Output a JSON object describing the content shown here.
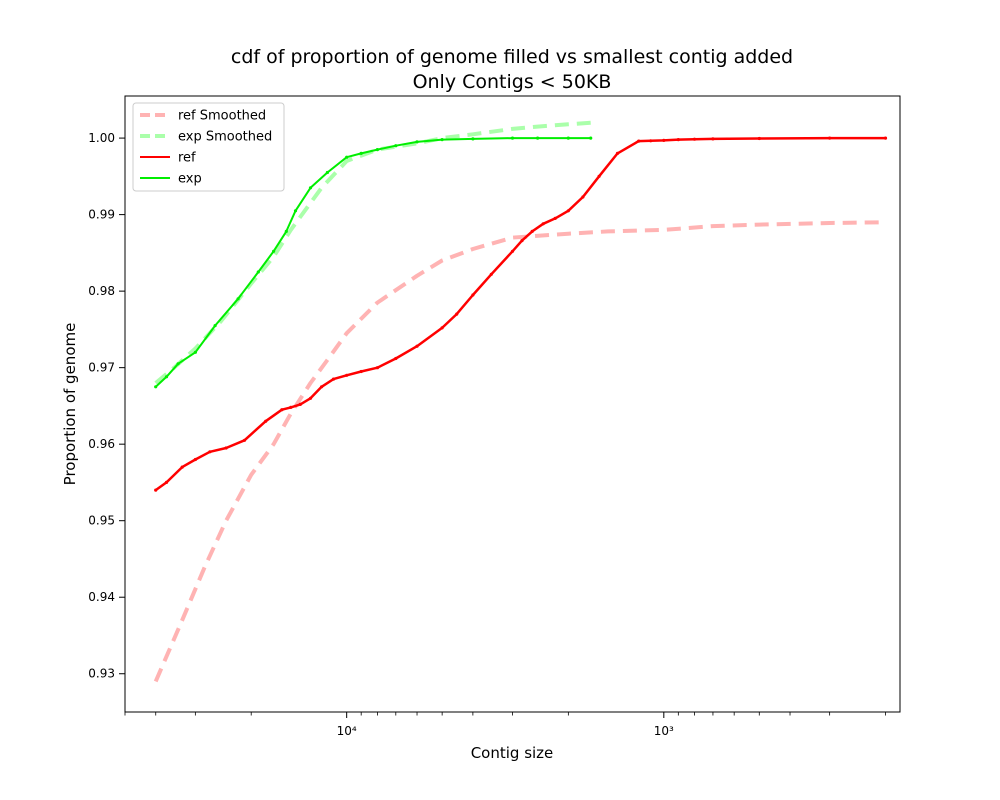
{
  "chart_data": {
    "type": "line",
    "title": "cdf of proportion of genome filled vs smallest contig added",
    "subtitle": "Only Contigs < 50KB",
    "xlabel": "Contig size",
    "ylabel": "Proportion of genome",
    "x_scale": "log",
    "x_axis_inverted": true,
    "xlim": [
      50000,
      180
    ],
    "ylim": [
      0.925,
      1.0055
    ],
    "x_ticks": [
      {
        "value": 10000,
        "label": "10⁴"
      },
      {
        "value": 1000,
        "label": "10³"
      }
    ],
    "y_ticks": [
      {
        "value": 0.93,
        "label": "0.93"
      },
      {
        "value": 0.94,
        "label": "0.94"
      },
      {
        "value": 0.95,
        "label": "0.95"
      },
      {
        "value": 0.96,
        "label": "0.96"
      },
      {
        "value": 0.97,
        "label": "0.97"
      },
      {
        "value": 0.98,
        "label": "0.98"
      },
      {
        "value": 0.99,
        "label": "0.99"
      },
      {
        "value": 1.0,
        "label": "1.00"
      }
    ],
    "grid": false,
    "legend_position": "top-left",
    "series": [
      {
        "name": "ref Smoothed",
        "style": "dashed",
        "color": "#ffb3b3",
        "x": [
          40000,
          33000,
          28000,
          24000,
          20000,
          17000,
          15000,
          13000,
          11500,
          10000,
          8000,
          6000,
          5000,
          4000,
          3000,
          2000,
          1500,
          1000,
          700,
          500,
          300,
          200
        ],
        "y": [
          0.929,
          0.937,
          0.944,
          0.95,
          0.956,
          0.96,
          0.964,
          0.968,
          0.971,
          0.9745,
          0.9785,
          0.982,
          0.984,
          0.9855,
          0.987,
          0.9875,
          0.9878,
          0.988,
          0.9885,
          0.9887,
          0.9889,
          0.989
        ]
      },
      {
        "name": "exp Smoothed",
        "style": "dashed",
        "color": "#aaffaa",
        "x": [
          40000,
          35000,
          30000,
          25000,
          20000,
          17000,
          15000,
          12000,
          10000,
          8000,
          6000,
          5000,
          4000,
          3000,
          2500,
          2000,
          1700
        ],
        "y": [
          0.968,
          0.97,
          0.9725,
          0.976,
          0.981,
          0.9845,
          0.988,
          0.9935,
          0.997,
          0.9985,
          0.9993,
          1.0,
          1.0005,
          1.0012,
          1.0015,
          1.0018,
          1.002
        ]
      },
      {
        "name": "ref",
        "style": "solid",
        "color": "#ff0000",
        "x": [
          40000,
          37000,
          33000,
          30000,
          27000,
          24000,
          21000,
          18000,
          16000,
          15000,
          14000,
          13000,
          12000,
          11000,
          10000,
          9000,
          8000,
          7000,
          6000,
          5000,
          4500,
          4000,
          3500,
          3000,
          2800,
          2600,
          2400,
          2200,
          2000,
          1800,
          1600,
          1400,
          1200,
          1100,
          1000,
          900,
          800,
          700,
          500,
          300,
          200
        ],
        "y": [
          0.954,
          0.955,
          0.957,
          0.958,
          0.959,
          0.9595,
          0.9605,
          0.963,
          0.9645,
          0.9648,
          0.9652,
          0.966,
          0.9675,
          0.9685,
          0.969,
          0.9695,
          0.97,
          0.9712,
          0.9728,
          0.9752,
          0.977,
          0.9795,
          0.9822,
          0.9852,
          0.9866,
          0.9878,
          0.9888,
          0.9895,
          0.9905,
          0.9923,
          0.995,
          0.998,
          0.9996,
          0.99965,
          0.9997,
          0.9998,
          0.99985,
          0.9999,
          0.99995,
          1.0,
          1.0
        ]
      },
      {
        "name": "exp",
        "style": "solid",
        "color": "#00ee00",
        "x": [
          40000,
          37000,
          34000,
          30000,
          26000,
          22000,
          19000,
          17000,
          15500,
          14500,
          13000,
          11500,
          10000,
          9000,
          8000,
          7000,
          6000,
          5000,
          4000,
          3000,
          2500,
          2000,
          1700
        ],
        "y": [
          0.9675,
          0.9688,
          0.9705,
          0.972,
          0.9755,
          0.979,
          0.9825,
          0.9852,
          0.9878,
          0.9905,
          0.9935,
          0.9955,
          0.9975,
          0.998,
          0.9985,
          0.999,
          0.9995,
          0.9998,
          0.9999,
          1.0,
          1.0,
          1.0,
          1.0
        ]
      }
    ]
  }
}
